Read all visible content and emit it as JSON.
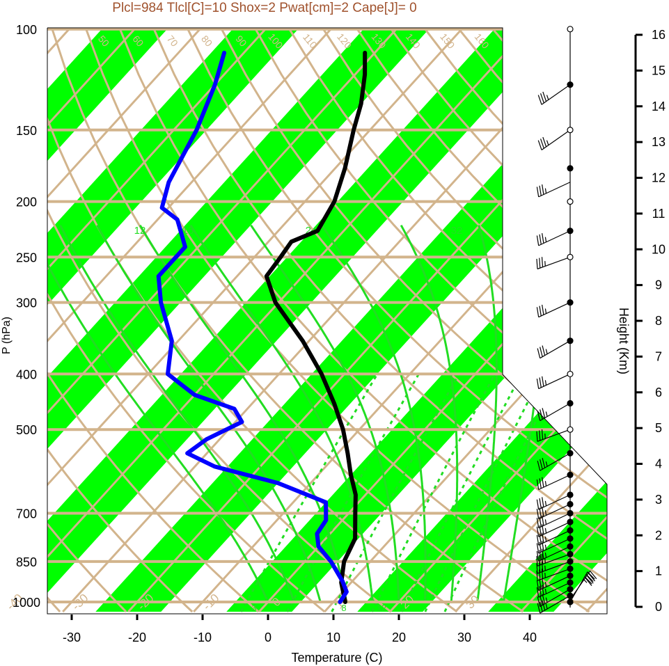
{
  "title": "Plcl=984 Tlcl[C]=10 Shox=2 Pwat[cm]=2 Cape[J]= 0",
  "colors": {
    "title": "#a0522d",
    "tan": "#d2b48c",
    "band_green": "#00ff00",
    "moist_green": "#22dd22",
    "temperature": "#000000",
    "dewpoint": "#0000ff"
  },
  "chart_data": {
    "type": "skew-t log-p sounding",
    "xlabel": "Temperature (C)",
    "ylabel": "P (hPa)",
    "y2label": "Height (Km)",
    "xlim": [
      -33,
      45
    ],
    "plim": [
      1050,
      100
    ],
    "x_ticks": [
      "-30",
      "-20",
      "-10",
      "0",
      "10",
      "20",
      "30",
      "40"
    ],
    "p_ticks": [
      "100",
      "150",
      "200",
      "250",
      "300",
      "400",
      "500",
      "700",
      "850",
      "1000"
    ],
    "height_ticks": [
      "0",
      "1",
      "2",
      "3",
      "4",
      "5",
      "6",
      "7",
      "8",
      "9",
      "10",
      "11",
      "12",
      "13",
      "14",
      "15",
      "16"
    ],
    "isotherm_labels": [
      "-40",
      "-30",
      "-20",
      "-10",
      "0",
      "10",
      "20",
      "30"
    ],
    "dry_adiabat_labels": [
      "50",
      "60",
      "70",
      "80",
      "90",
      "100",
      "110",
      "120",
      "130",
      "140",
      "150",
      "160"
    ],
    "moist_adiabat_labels": [
      "12",
      "16",
      "24",
      "32"
    ],
    "mixing_ratio_labels": [
      "3",
      "8",
      "12"
    ],
    "temperature_profile": [
      {
        "p": 1000,
        "t": 11.8
      },
      {
        "p": 925,
        "t": 8.5
      },
      {
        "p": 850,
        "t": 6.0
      },
      {
        "p": 775,
        "t": 4.5
      },
      {
        "p": 700,
        "t": 1.0
      },
      {
        "p": 650,
        "t": -1.5
      },
      {
        "p": 600,
        "t": -5.0
      },
      {
        "p": 550,
        "t": -8.5
      },
      {
        "p": 500,
        "t": -12.5
      },
      {
        "p": 450,
        "t": -17.5
      },
      {
        "p": 400,
        "t": -23.5
      },
      {
        "p": 350,
        "t": -31.0
      },
      {
        "p": 300,
        "t": -40.5
      },
      {
        "p": 270,
        "t": -45.5
      },
      {
        "p": 250,
        "t": -46.0
      },
      {
        "p": 235,
        "t": -46.5
      },
      {
        "p": 225,
        "t": -44.0
      },
      {
        "p": 200,
        "t": -45.5
      },
      {
        "p": 175,
        "t": -48.5
      },
      {
        "p": 150,
        "t": -52.5
      },
      {
        "p": 135,
        "t": -55.0
      },
      {
        "p": 120,
        "t": -58.5
      },
      {
        "p": 110,
        "t": -61.5
      }
    ],
    "dewpoint_profile": [
      {
        "p": 1000,
        "t": 11.0
      },
      {
        "p": 960,
        "t": 10.6
      },
      {
        "p": 920,
        "t": 8.5
      },
      {
        "p": 850,
        "t": 4.0
      },
      {
        "p": 800,
        "t": 0.0
      },
      {
        "p": 760,
        "t": -2.0
      },
      {
        "p": 720,
        "t": -2.5
      },
      {
        "p": 670,
        "t": -5.0
      },
      {
        "p": 620,
        "t": -15.0
      },
      {
        "p": 580,
        "t": -27.0
      },
      {
        "p": 550,
        "t": -33.0
      },
      {
        "p": 520,
        "t": -32.0
      },
      {
        "p": 485,
        "t": -29.0
      },
      {
        "p": 460,
        "t": -32.0
      },
      {
        "p": 435,
        "t": -40.0
      },
      {
        "p": 400,
        "t": -47.0
      },
      {
        "p": 350,
        "t": -51.0
      },
      {
        "p": 300,
        "t": -58.0
      },
      {
        "p": 270,
        "t": -62.0
      },
      {
        "p": 240,
        "t": -62.0
      },
      {
        "p": 215,
        "t": -67.0
      },
      {
        "p": 205,
        "t": -71.0
      },
      {
        "p": 185,
        "t": -73.5
      },
      {
        "p": 150,
        "t": -76.5
      },
      {
        "p": 125,
        "t": -80.0
      },
      {
        "p": 110,
        "t": -83.0
      }
    ],
    "wind_barbs": [
      {
        "p": 1000,
        "dir": 30,
        "spd": 35
      },
      {
        "p": 990,
        "dir": 35,
        "spd": 40
      },
      {
        "p": 975,
        "dir": 240,
        "spd": 35
      },
      {
        "p": 950,
        "dir": 240,
        "spd": 35
      },
      {
        "p": 925,
        "dir": 245,
        "spd": 35
      },
      {
        "p": 900,
        "dir": 245,
        "spd": 35
      },
      {
        "p": 875,
        "dir": 250,
        "spd": 35
      },
      {
        "p": 850,
        "dir": 250,
        "spd": 35
      },
      {
        "p": 825,
        "dir": 250,
        "spd": 35
      },
      {
        "p": 800,
        "dir": 245,
        "spd": 35
      },
      {
        "p": 775,
        "dir": 245,
        "spd": 35
      },
      {
        "p": 750,
        "dir": 245,
        "spd": 35
      },
      {
        "p": 725,
        "dir": 245,
        "spd": 35
      },
      {
        "p": 700,
        "dir": 245,
        "spd": 35
      },
      {
        "p": 675,
        "dir": 245,
        "spd": 35
      },
      {
        "p": 650,
        "dir": 245,
        "spd": 35
      },
      {
        "p": 600,
        "dir": 245,
        "spd": 35
      },
      {
        "p": 550,
        "dir": 240,
        "spd": 35
      },
      {
        "p": 500,
        "dir": 250,
        "spd": 35
      },
      {
        "p": 450,
        "dir": 240,
        "spd": 35
      },
      {
        "p": 400,
        "dir": 245,
        "spd": 35
      },
      {
        "p": 350,
        "dir": 240,
        "spd": 35
      },
      {
        "p": 300,
        "dir": 245,
        "spd": 35
      },
      {
        "p": 250,
        "dir": 250,
        "spd": 35
      },
      {
        "p": 225,
        "dir": 245,
        "spd": 35
      },
      {
        "p": 185,
        "dir": 245,
        "spd": 35
      },
      {
        "p": 150,
        "dir": 235,
        "spd": 35
      },
      {
        "p": 125,
        "dir": 235,
        "spd": 35
      }
    ],
    "height_markers": [
      {
        "p": 1000,
        "filled": true
      },
      {
        "p": 975,
        "filled": true
      },
      {
        "p": 950,
        "filled": true
      },
      {
        "p": 925,
        "filled": true
      },
      {
        "p": 900,
        "filled": true
      },
      {
        "p": 875,
        "filled": true
      },
      {
        "p": 850,
        "filled": true
      },
      {
        "p": 825,
        "filled": true
      },
      {
        "p": 800,
        "filled": true
      },
      {
        "p": 775,
        "filled": true
      },
      {
        "p": 750,
        "filled": true
      },
      {
        "p": 725,
        "filled": true
      },
      {
        "p": 700,
        "filled": true
      },
      {
        "p": 675,
        "filled": true
      },
      {
        "p": 650,
        "filled": true
      },
      {
        "p": 600,
        "filled": true
      },
      {
        "p": 550,
        "filled": true
      },
      {
        "p": 500,
        "filled": false
      },
      {
        "p": 450,
        "filled": true
      },
      {
        "p": 400,
        "filled": false
      },
      {
        "p": 350,
        "filled": true
      },
      {
        "p": 300,
        "filled": true
      },
      {
        "p": 250,
        "filled": false
      },
      {
        "p": 225,
        "filled": true
      },
      {
        "p": 200,
        "filled": false
      },
      {
        "p": 175,
        "filled": true
      },
      {
        "p": 150,
        "filled": false
      },
      {
        "p": 125,
        "filled": true
      },
      {
        "p": 100,
        "filled": false
      }
    ]
  }
}
